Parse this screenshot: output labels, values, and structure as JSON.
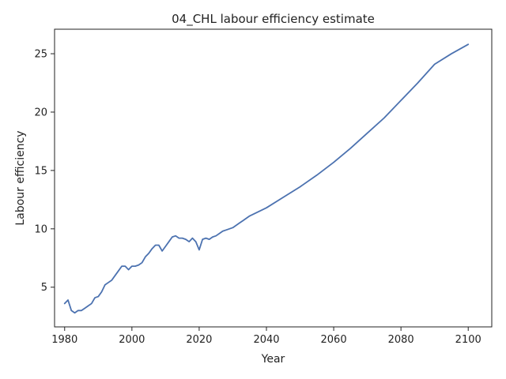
{
  "chart_data": {
    "type": "line",
    "title": "04_CHL labour efficiency estimate",
    "xlabel": "Year",
    "ylabel": "Labour efficiency",
    "xlim": [
      1977,
      2107
    ],
    "ylim": [
      1.6,
      27.1
    ],
    "xticks": [
      1980,
      2000,
      2020,
      2040,
      2060,
      2080,
      2100
    ],
    "yticks": [
      5,
      10,
      15,
      20,
      25
    ],
    "grid": false,
    "legend": "none",
    "line_color": "#4c72b0",
    "series": [
      {
        "x": [
          1980,
          1981,
          1982,
          1983,
          1984,
          1985,
          1986,
          1987,
          1988,
          1989,
          1990,
          1991,
          1992,
          1993,
          1994,
          1995,
          1996,
          1997,
          1998,
          1999,
          2000,
          2001,
          2002,
          2003,
          2004,
          2005,
          2006,
          2007,
          2008,
          2009,
          2010,
          2011,
          2012,
          2013,
          2014,
          2015,
          2016,
          2017,
          2018,
          2019,
          2020,
          2021,
          2022,
          2023,
          2024,
          2025,
          2026,
          2027,
          2028,
          2029,
          2030,
          2031,
          2032,
          2033,
          2034,
          2035,
          2040,
          2045,
          2050,
          2055,
          2060,
          2065,
          2070,
          2075,
          2080,
          2085,
          2090,
          2095,
          2100
        ],
        "y": [
          3.6,
          3.9,
          3.0,
          2.8,
          3.0,
          3.0,
          3.2,
          3.4,
          3.6,
          4.1,
          4.2,
          4.6,
          5.2,
          5.4,
          5.6,
          6.0,
          6.4,
          6.8,
          6.8,
          6.5,
          6.8,
          6.8,
          6.9,
          7.1,
          7.6,
          7.9,
          8.3,
          8.6,
          8.6,
          8.1,
          8.5,
          8.9,
          9.3,
          9.4,
          9.2,
          9.2,
          9.1,
          8.9,
          9.2,
          8.9,
          8.2,
          9.1,
          9.2,
          9.1,
          9.3,
          9.4,
          9.6,
          9.8,
          9.9,
          10.0,
          10.1,
          10.3,
          10.5,
          10.7,
          10.9,
          11.1,
          11.8,
          12.7,
          13.6,
          14.6,
          15.7,
          16.9,
          18.2,
          19.5,
          21.0,
          22.5,
          24.1,
          25.0,
          25.8
        ]
      }
    ]
  }
}
